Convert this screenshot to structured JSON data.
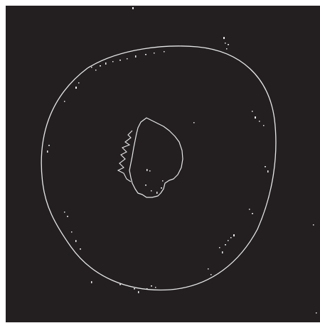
{
  "image": {
    "subject": "edge-detected-outline",
    "background_color": "#231f20",
    "edge_color": "#e8e8e8",
    "frame_color": "#ffffff"
  }
}
